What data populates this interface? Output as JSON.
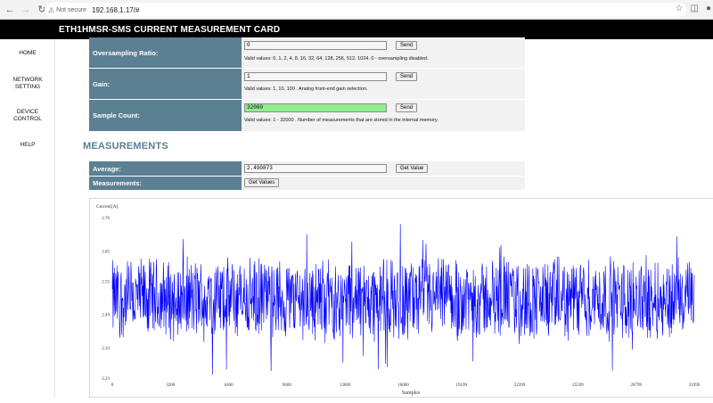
{
  "browser": {
    "security_label": "Not secure",
    "url": "192.168.1.17/#",
    "icons": [
      "back-icon",
      "forward-icon",
      "reload-icon",
      "warning-icon",
      "star-icon",
      "extensions-icon",
      "profile-icon"
    ]
  },
  "app": {
    "title": "ETH1HMSR-SMS CURRENT MEASUREMENT CARD"
  },
  "sidebar": {
    "items": [
      {
        "label": "HOME"
      },
      {
        "label": "NETWORK SETTING"
      },
      {
        "label": "DEVICE CONTROL"
      },
      {
        "label": "HELP"
      }
    ]
  },
  "settings": {
    "oversampling": {
      "label": "Oversampling Ratio:",
      "value": "0",
      "button": "Send",
      "hint": "Valid values: 0, 1, 2, 4, 8, 16, 32, 64, 128, 256, 512, 1024. 0 - oversampling disabled."
    },
    "gain": {
      "label": "Gain:",
      "value": "1",
      "button": "Send",
      "hint": "Valid values: 1, 10, 100 . Analog front-end gain selection."
    },
    "sample_count": {
      "label": "Sample Count:",
      "value": "32000",
      "button": "Send",
      "hint": "Valid values: 1 - 32000 . Number of measurements that are stored in the internal memory."
    }
  },
  "measurements": {
    "title": "MEASUREMENTS",
    "average": {
      "label": "Average:",
      "value": "2.490873",
      "button": "Get Value"
    },
    "values": {
      "label": "Measurements:",
      "button": "Get Values"
    }
  },
  "colors": {
    "header": "#000000",
    "label_bg": "#5b7f93",
    "accent_green": "#90ee90",
    "series": "#0000ff"
  },
  "chart_data": {
    "type": "line",
    "ylabel": "Current[A]",
    "xlabel": "Samples",
    "yticks": [
      "2.23",
      "2.33",
      "2.44",
      "2.55",
      "2.65",
      "2.76"
    ],
    "xticks": [
      "0",
      "3200",
      "6400",
      "9600",
      "12800",
      "16000",
      "19199",
      "22399",
      "25599",
      "28799",
      "31999"
    ],
    "ylim": [
      2.23,
      2.76
    ],
    "xlim": [
      0,
      31999
    ],
    "series": [
      {
        "center": 2.49,
        "spread_min": 2.34,
        "spread_max": 2.64,
        "peak_min": 2.25,
        "peak_max": 2.76
      }
    ]
  }
}
